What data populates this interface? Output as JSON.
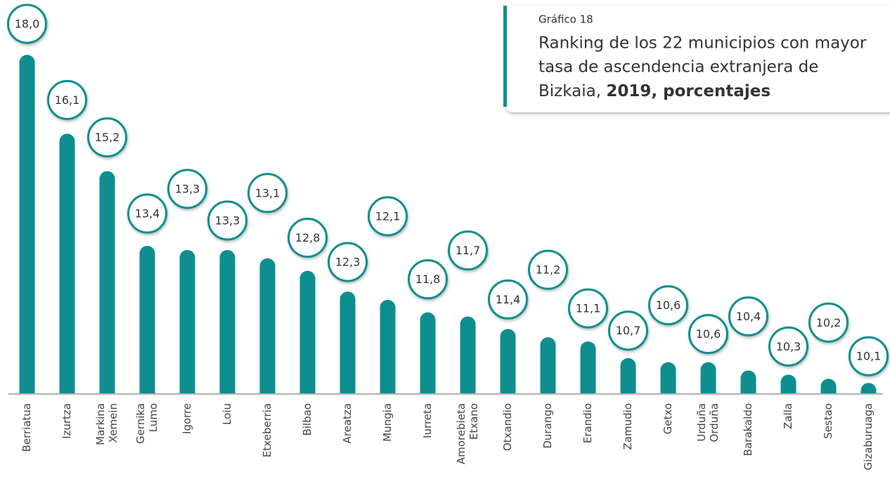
{
  "chart_data": {
    "type": "bar",
    "label": "Gráfico 18",
    "title": [
      "Ranking de los 22 municipios con mayor",
      "tasa de ascendencia extranjera de",
      "Bizkaia, "
    ],
    "title_bold": "2019, porcentajes",
    "categories": [
      [
        "Berriatua"
      ],
      [
        "Izurtza"
      ],
      [
        "Markina",
        "Xemein"
      ],
      [
        "Gernika",
        "Lumo"
      ],
      [
        "Igorre"
      ],
      [
        "Loiu"
      ],
      [
        "Etxeberria"
      ],
      [
        "Bilbao"
      ],
      [
        "Areatza"
      ],
      [
        "Mungia"
      ],
      [
        "Iurreta"
      ],
      [
        "Amorebieta",
        "Etxano"
      ],
      [
        "Otxandio"
      ],
      [
        "Durango"
      ],
      [
        "Erandio"
      ],
      [
        "Zamudio"
      ],
      [
        "Getxo"
      ],
      [
        "Urduña",
        "Orduña"
      ],
      [
        "Barakaldo"
      ],
      [
        "Zalla"
      ],
      [
        "Sestao"
      ],
      [
        "Gizaburuaga"
      ]
    ],
    "values": [
      18.0,
      16.1,
      15.2,
      13.4,
      13.3,
      13.3,
      13.1,
      12.8,
      12.3,
      12.1,
      11.8,
      11.7,
      11.4,
      11.2,
      11.1,
      10.7,
      10.6,
      10.6,
      10.4,
      10.3,
      10.2,
      10.1
    ],
    "value_labels": [
      "18,0",
      "16,1",
      "15,2",
      "13,4",
      "13,3",
      "13,3",
      "13,1",
      "12,8",
      "12,3",
      "12,1",
      "11,8",
      "11,7",
      "11,4",
      "11,2",
      "11,1",
      "10,7",
      "10,6",
      "10,6",
      "10,4",
      "10,3",
      "10,2",
      "10,1"
    ],
    "color": "#0e8e8e",
    "ylim": [
      9.85,
      18.0
    ]
  }
}
